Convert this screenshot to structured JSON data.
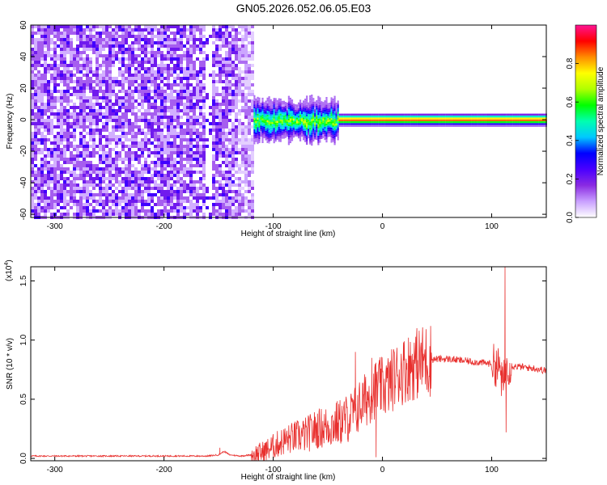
{
  "title": "GN05.2026.052.06.05.E03",
  "chart_data": [
    {
      "type": "heatmap",
      "xlabel": "Height of straight line (km)",
      "ylabel": "Frequency (Hz)",
      "xlim": [
        -322,
        150
      ],
      "ylim": [
        -62,
        60
      ],
      "xticks": [
        -300,
        -200,
        -100,
        0,
        100
      ],
      "xtick_labels": [
        "-300",
        "-200",
        "-100",
        "0",
        "100"
      ],
      "yticks": [
        -60,
        -40,
        -20,
        0,
        20,
        40,
        60
      ],
      "ytick_labels": [
        "-60",
        "-40",
        "-20",
        "0",
        "20",
        "40",
        "60"
      ],
      "colorbar": {
        "label": "Normalized spectral amplitude",
        "range": [
          0,
          1
        ],
        "ticks": [
          0,
          0.2,
          0.4,
          0.6,
          0.8
        ],
        "tick_labels": [
          "0.0",
          "0.2",
          "0.4",
          "0.6",
          "0.8"
        ],
        "colors": [
          "#ffffff",
          "#c9a0ff",
          "#8a2be2",
          "#4a00ff",
          "#0000ff",
          "#00c8ff",
          "#00ffb0",
          "#00ff00",
          "#b0ff00",
          "#ffff00",
          "#ff8c00",
          "#ff0000",
          "#ff1493"
        ]
      },
      "regions": [
        {
          "description": "noise",
          "x_range": [
            -322,
            -118
          ],
          "freq_range": [
            -62,
            60
          ],
          "amplitude": 0.12
        },
        {
          "description": "signal",
          "x_range": [
            -118,
            150
          ],
          "freq_center": 0,
          "amplitude": 1.0
        }
      ],
      "grid": false,
      "legend": "none"
    },
    {
      "type": "line",
      "xlabel": "Height of straight line (km)",
      "ylabel": "SNR (10 * v/v)",
      "y_multiplier": "(x10",
      "y_multiplier_exp": "4",
      "y_multiplier_close": ")",
      "xlim": [
        -322,
        150
      ],
      "ylim": [
        -0.02,
        1.62
      ],
      "xticks": [
        -300,
        -200,
        -100,
        0,
        100
      ],
      "xtick_labels": [
        "-300",
        "-200",
        "-100",
        "0",
        "100"
      ],
      "yticks": [
        0,
        0.5,
        1.0,
        1.5
      ],
      "ytick_labels": [
        "0.0",
        "0.5",
        "1.0",
        "1.5"
      ],
      "color": "#e8302e",
      "series": [
        {
          "x": [
            -322,
            -300,
            -280,
            -260,
            -240,
            -220,
            -200,
            -180,
            -160,
            -150,
            -145,
            -140,
            -130,
            -120,
            -110,
            -100,
            -90,
            -80,
            -70,
            -60,
            -50,
            -40,
            -30,
            -25,
            -20,
            -15,
            -10,
            -5,
            0,
            5,
            10,
            15,
            20,
            25,
            30,
            40,
            50,
            60,
            70,
            80,
            90,
            100,
            105,
            108,
            110,
            112,
            115,
            120,
            130,
            140,
            150
          ],
          "values": [
            0.02,
            0.02,
            0.02,
            0.02,
            0.02,
            0.02,
            0.02,
            0.02,
            0.02,
            0.03,
            0.06,
            0.03,
            0.02,
            0.03,
            0.05,
            0.1,
            0.15,
            0.18,
            0.2,
            0.25,
            0.27,
            0.3,
            0.35,
            0.4,
            0.45,
            0.5,
            0.55,
            0.6,
            0.6,
            0.62,
            0.68,
            0.72,
            0.75,
            0.78,
            0.8,
            0.83,
            0.84,
            0.84,
            0.83,
            0.82,
            0.81,
            0.8,
            0.78,
            0.75,
            0.6,
            0.7,
            0.8,
            0.78,
            0.77,
            0.76,
            0.74
          ]
        }
      ],
      "spikes": [
        {
          "x": -149,
          "y": 0.09
        },
        {
          "x": -25,
          "y": 0.9
        },
        {
          "x": -10,
          "y": 0.85
        },
        {
          "x": -6,
          "y": 0.01
        },
        {
          "x": 112,
          "y": 1.62
        },
        {
          "x": 113,
          "y": 0.22
        }
      ],
      "grid": false,
      "legend": "none"
    }
  ]
}
